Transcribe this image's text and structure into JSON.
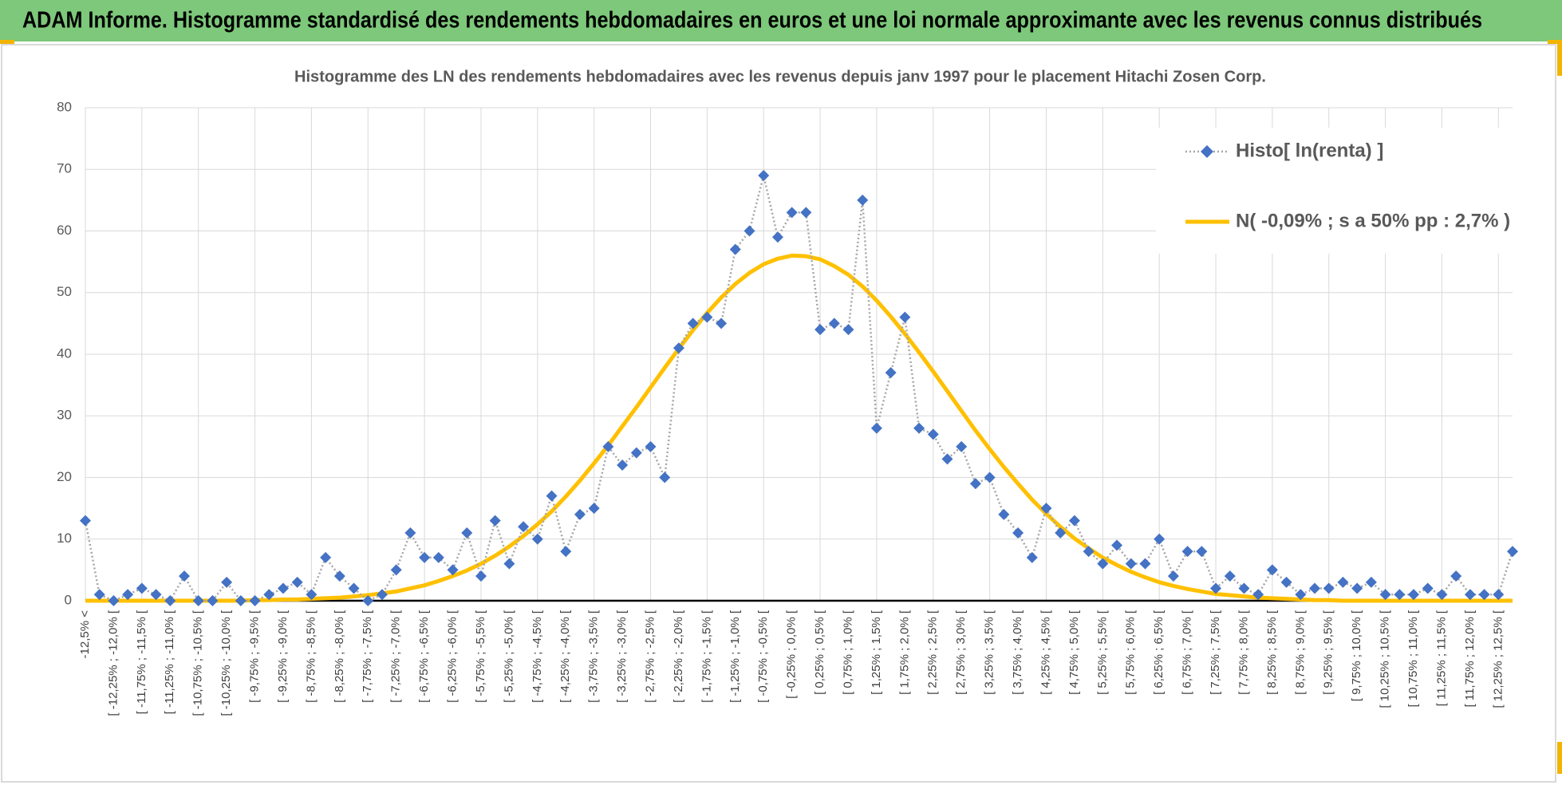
{
  "header": {
    "title": "ADAM Informe. Histogramme standardisé des rendements hebdomadaires en euros et une loi normale approximante avec les revenus connus distribués"
  },
  "chart_data": {
    "type": "line",
    "title": "Histogramme des LN des rendements hebdomadaires avec les revenus depuis janv 1997 pour le placement Hitachi Zosen Corp.",
    "categories": [
      "-12,5% <",
      null,
      "[ -12,25% ; -12,0% [",
      null,
      "[ -11,75% ; -11,5% [",
      null,
      "[ -11,25% ; -11,0% [",
      null,
      "[ -10,75% ; -10,5% [",
      null,
      "[ -10,25% ; -10,0% [",
      null,
      "[ -9,75% ; -9,5% [",
      null,
      "[ -9,25% ; -9,0% [",
      null,
      "[ -8,75% ; -8,5% [",
      null,
      "[ -8,25% ; -8,0% [",
      null,
      "[ -7,75% ; -7,5% [",
      null,
      "[ -7,25% ; -7,0% [",
      null,
      "[ -6,75% ; -6,5% [",
      null,
      "[ -6,25% ; -6,0% [",
      null,
      "[ -5,75% ; -5,5% [",
      null,
      "[ -5,25% ; -5,0% [",
      null,
      "[ -4,75% ; -4,5% [",
      null,
      "[ -4,25% ; -4,0% [",
      null,
      "[ -3,75% ; -3,5% [",
      null,
      "[ -3,25% ; -3,0% [",
      null,
      "[ -2,75% ; -2,5% [",
      null,
      "[ -2,25% ; -2,0% [",
      null,
      "[ -1,75% ; -1,5% [",
      null,
      "[ -1,25% ; -1,0% [",
      null,
      "[ -0,75% ; -0,5% [",
      null,
      "[ -0,25% ; 0,0% [",
      null,
      "[ 0,25% ; 0,5% [",
      null,
      "[ 0,75% ; 1,0% [",
      null,
      "[ 1,25% ; 1,5% [",
      null,
      "[ 1,75% ; 2,0% [",
      null,
      "[ 2,25% ; 2,5% [",
      null,
      "[ 2,75% ; 3,0% [",
      null,
      "[ 3,25% ; 3,5% [",
      null,
      "[ 3,75% ; 4,0% [",
      null,
      "[ 4,25% ; 4,5% [",
      null,
      "[ 4,75% ; 5,0% [",
      null,
      "[ 5,25% ; 5,5% [",
      null,
      "[ 5,75% ; 6,0% [",
      null,
      "[ 6,25% ; 6,5% [",
      null,
      "[ 6,75% ; 7,0% [",
      null,
      "[ 7,25% ; 7,5% [",
      null,
      "[ 7,75% ; 8,0% [",
      null,
      "[ 8,25% ; 8,5% [",
      null,
      "[ 8,75% ; 9,0% [",
      null,
      "[ 9,25% ; 9,5% [",
      null,
      "[ 9,75% ; 10,0% [",
      null,
      "[ 10,25% ; 10,5% [",
      null,
      "[ 10,75% ; 11,0% [",
      null,
      "[ 11,25% ; 11,5% [",
      null,
      "[ 11,75% ; 12,0% [",
      null,
      "[ 12,25% ; 12,5% [",
      null
    ],
    "series": [
      {
        "name": "Histo[ ln(renta) ]",
        "color": "#4472c4",
        "line_color": "#a6a6a6",
        "marker": "diamond",
        "values": [
          13,
          1,
          0,
          1,
          2,
          1,
          0,
          4,
          0,
          0,
          3,
          0,
          0,
          1,
          2,
          3,
          1,
          7,
          4,
          2,
          0,
          1,
          5,
          11,
          7,
          7,
          5,
          11,
          4,
          13,
          6,
          12,
          10,
          17,
          8,
          14,
          15,
          25,
          22,
          24,
          25,
          20,
          41,
          45,
          46,
          45,
          57,
          60,
          69,
          59,
          63,
          63,
          44,
          45,
          44,
          65,
          28,
          37,
          46,
          28,
          27,
          23,
          25,
          19,
          20,
          14,
          11,
          7,
          15,
          11,
          13,
          8,
          6,
          9,
          6,
          6,
          10,
          4,
          8,
          8,
          2,
          4,
          2,
          1,
          5,
          3,
          1,
          2,
          2,
          3,
          2,
          3,
          1,
          1,
          1,
          2,
          1,
          4,
          1,
          1,
          1,
          8
        ]
      },
      {
        "name": "N( -0,09% ; s a 50% pp : 2,7% )",
        "color": "#ffc000",
        "marker": "none",
        "values": [
          0,
          0,
          0,
          0,
          0,
          0,
          0,
          0,
          0,
          0,
          0,
          0,
          0.1,
          0.1,
          0.2,
          0.2,
          0.3,
          0.4,
          0.5,
          0.7,
          0.9,
          1.2,
          1.5,
          2.0,
          2.5,
          3.2,
          4.0,
          4.9,
          6.0,
          7.3,
          8.8,
          10.5,
          12.4,
          14.5,
          16.9,
          19.5,
          22.3,
          25.2,
          28.3,
          31.4,
          34.6,
          37.8,
          40.9,
          43.9,
          46.7,
          49.2,
          51.4,
          53.2,
          54.6,
          55.5,
          56.0,
          55.9,
          55.4,
          54.3,
          52.9,
          51.0,
          48.7,
          46.1,
          43.3,
          40.3,
          37.2,
          34.0,
          30.8,
          27.6,
          24.6,
          21.7,
          19.0,
          16.4,
          14.1,
          12.0,
          10.1,
          8.5,
          7.0,
          5.8,
          4.7,
          3.8,
          3.0,
          2.4,
          1.9,
          1.5,
          1.1,
          0.9,
          0.7,
          0.5,
          0.4,
          0.3,
          0.2,
          0.1,
          0.1,
          0,
          0,
          0,
          0,
          0,
          0,
          0,
          0,
          0,
          0,
          0,
          0,
          0
        ]
      }
    ],
    "ylim": [
      0,
      80
    ],
    "yticks": [
      0,
      10,
      20,
      30,
      40,
      50,
      60,
      70,
      80
    ],
    "grid": true,
    "legend": "top-right"
  }
}
